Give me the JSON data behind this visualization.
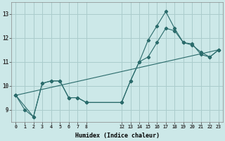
{
  "xlabel": "Humidex (Indice chaleur)",
  "bg_color": "#cce8e8",
  "grid_color": "#aacccc",
  "line_color": "#2a6b6b",
  "xlim": [
    -0.5,
    23.5
  ],
  "ylim": [
    8.5,
    13.5
  ],
  "xticks": [
    0,
    1,
    2,
    3,
    4,
    5,
    6,
    7,
    8,
    12,
    13,
    14,
    15,
    16,
    17,
    18,
    19,
    20,
    21,
    22,
    23
  ],
  "yticks": [
    9,
    10,
    11,
    12,
    13
  ],
  "series": [
    {
      "x": [
        0,
        1,
        2,
        3,
        4,
        5,
        6,
        7,
        8,
        12,
        13,
        14,
        15,
        16,
        17,
        18,
        19,
        20,
        21,
        22,
        23
      ],
      "y": [
        9.6,
        9.0,
        8.7,
        10.1,
        10.2,
        10.2,
        9.5,
        9.5,
        9.3,
        9.3,
        10.2,
        11.0,
        11.9,
        12.5,
        13.1,
        12.4,
        11.8,
        11.75,
        11.3,
        11.2,
        11.5
      ]
    },
    {
      "x": [
        0,
        2,
        3,
        4,
        5,
        6,
        7,
        8,
        12,
        13,
        14,
        15,
        16,
        17,
        18,
        19,
        20,
        21,
        22,
        23
      ],
      "y": [
        9.6,
        8.7,
        10.1,
        10.2,
        10.2,
        9.5,
        9.5,
        9.3,
        9.3,
        10.2,
        11.0,
        11.2,
        11.8,
        12.4,
        12.3,
        11.8,
        11.7,
        11.4,
        11.2,
        11.5
      ]
    },
    {
      "x": [
        0,
        23
      ],
      "y": [
        9.6,
        11.5
      ]
    }
  ]
}
